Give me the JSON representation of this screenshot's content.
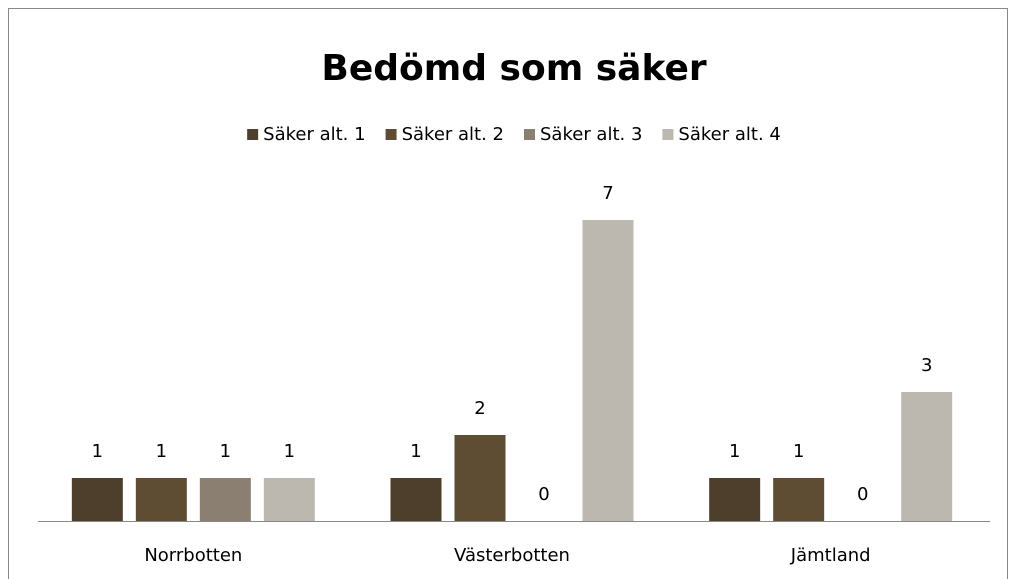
{
  "chart_data": {
    "type": "bar",
    "title": "Bedömd som säker",
    "categories": [
      "Norrbotten",
      "Västerbotten",
      "Jämtland"
    ],
    "series": [
      {
        "name": "Säker alt. 1",
        "color": "#4d3f2c",
        "values": [
          1,
          1,
          1
        ]
      },
      {
        "name": "Säker alt. 2",
        "color": "#5e4d33",
        "values": [
          1,
          2,
          1
        ]
      },
      {
        "name": "Säker alt. 3",
        "color": "#8a7f70",
        "values": [
          1,
          0,
          0
        ]
      },
      {
        "name": "Säker alt. 4",
        "color": "#bcb7af",
        "values": [
          1,
          7,
          3
        ]
      }
    ],
    "ylim": [
      0,
      8
    ],
    "legend": "top"
  }
}
